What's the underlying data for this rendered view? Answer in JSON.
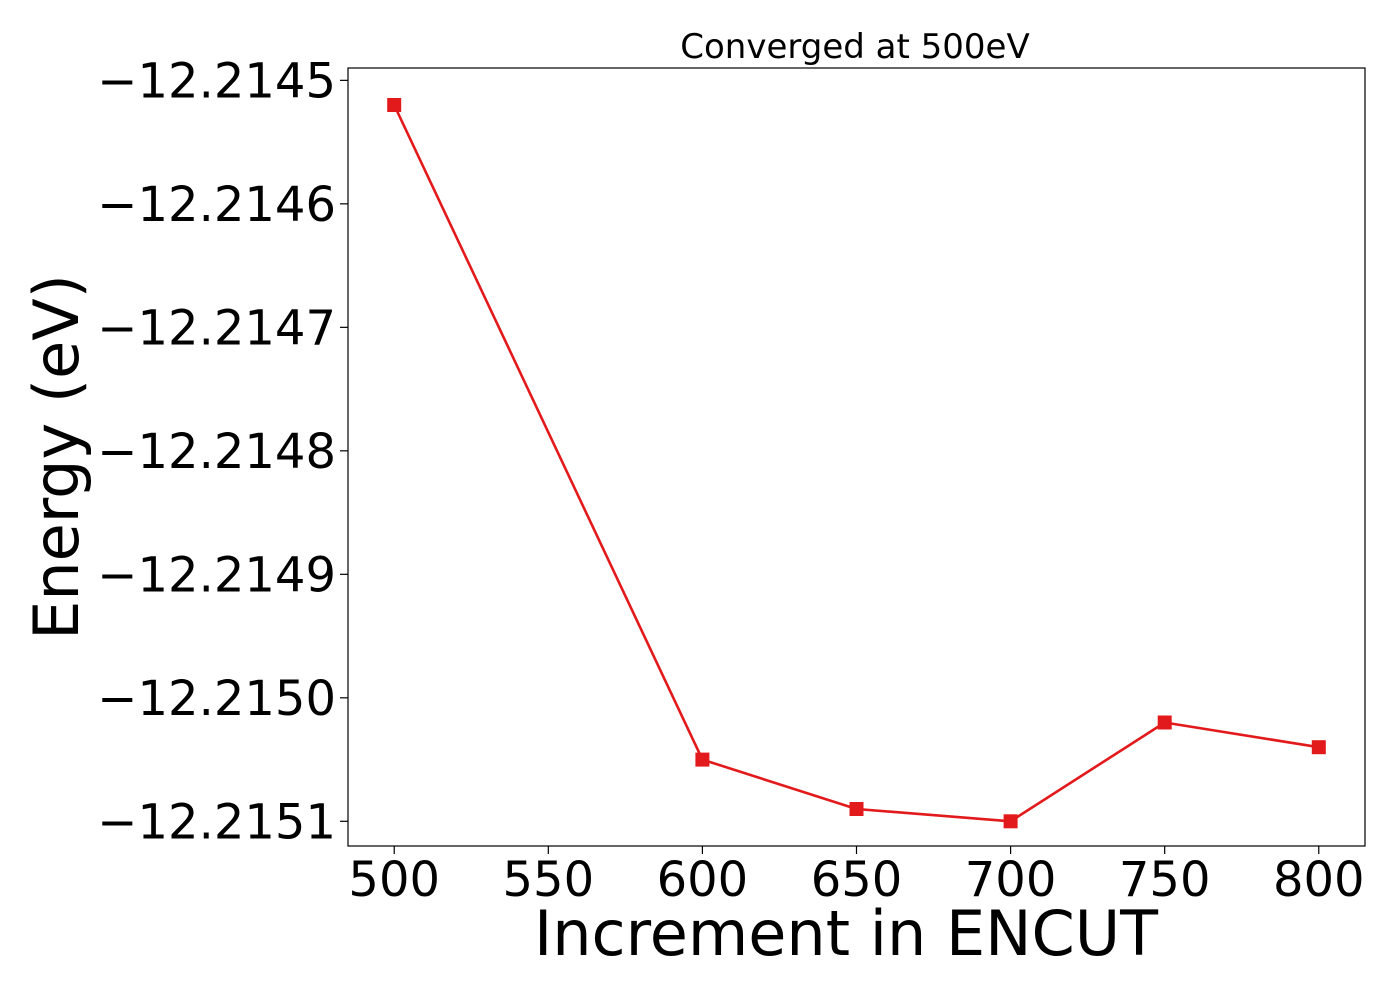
{
  "chart_data": {
    "type": "line",
    "title": "Converged at 500eV",
    "xlabel": "Increment in ENCUT",
    "ylabel": "Energy (eV)",
    "x": [
      500,
      600,
      650,
      700,
      750,
      800
    ],
    "series": [
      {
        "values": [
          -12.21452,
          -12.21505,
          -12.21509,
          -12.2151,
          -12.21502,
          -12.21504
        ],
        "color": "#e31a1c",
        "marker": "square"
      }
    ],
    "xticks": [
      500,
      550,
      600,
      650,
      700,
      750,
      800
    ],
    "xtick_labels": [
      "500",
      "550",
      "600",
      "650",
      "700",
      "750",
      "800"
    ],
    "yticks": [
      -12.2145,
      -12.2146,
      -12.2147,
      -12.2148,
      -12.2149,
      -12.215,
      -12.2151
    ],
    "ytick_labels": [
      "−12.2145",
      "−12.2146",
      "−12.2147",
      "−12.2148",
      "−12.2149",
      "−12.2150",
      "−12.2151"
    ],
    "xlim": [
      485,
      815
    ],
    "ylim": [
      -12.21512,
      -12.21449
    ],
    "grid": false,
    "legend": "none"
  }
}
